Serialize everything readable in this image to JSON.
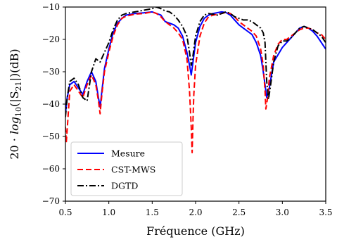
{
  "chart_data": {
    "type": "line",
    "xlabel": "Fréquence (GHz)",
    "ylabel": "20·log10(|S21|)(dB)",
    "ylabel_parts": {
      "prefix": "20 · ",
      "log": "log",
      "sub": "10",
      "mid": "(|S",
      "sub2": "21",
      "suffix": "|)(dB)"
    },
    "xlim": [
      0.5,
      3.5
    ],
    "ylim": [
      -70,
      -10
    ],
    "xticks": [
      0.5,
      1.0,
      1.5,
      2.0,
      2.5,
      3.0,
      3.5
    ],
    "xtick_labels": [
      "0.5",
      "1.0",
      "1.5",
      "2.0",
      "2.5",
      "3.0",
      "3.5"
    ],
    "yticks": [
      -70,
      -60,
      -50,
      -40,
      -30,
      -20,
      -10
    ],
    "ytick_labels": [
      "−70",
      "−60",
      "−50",
      "−40",
      "−30",
      "−20",
      "−10"
    ],
    "grid": false,
    "legend_position": "bottom-left",
    "series": [
      {
        "name": "Mesure",
        "color": "#0000ff",
        "style": "solid",
        "x": [
          0.5,
          0.52,
          0.55,
          0.6,
          0.65,
          0.7,
          0.75,
          0.8,
          0.85,
          0.88,
          0.9,
          0.92,
          0.95,
          1.0,
          1.05,
          1.1,
          1.15,
          1.2,
          1.3,
          1.4,
          1.5,
          1.55,
          1.6,
          1.65,
          1.7,
          1.75,
          1.8,
          1.85,
          1.9,
          1.93,
          1.95,
          1.97,
          2.0,
          2.05,
          2.1,
          2.15,
          2.2,
          2.3,
          2.35,
          2.4,
          2.45,
          2.5,
          2.55,
          2.6,
          2.65,
          2.7,
          2.75,
          2.78,
          2.8,
          2.82,
          2.85,
          2.9,
          3.0,
          3.05,
          3.1,
          3.15,
          3.2,
          3.25,
          3.3,
          3.35,
          3.4,
          3.45,
          3.5
        ],
        "y": [
          -43,
          -38,
          -34,
          -33,
          -35,
          -37,
          -33,
          -30,
          -33,
          -38,
          -41,
          -36,
          -29,
          -23,
          -18,
          -15,
          -13.5,
          -12.5,
          -12,
          -11.8,
          -11.5,
          -12,
          -12.5,
          -14.5,
          -15,
          -15.5,
          -16.5,
          -19,
          -24,
          -28,
          -31,
          -27,
          -21,
          -16,
          -13.5,
          -12.5,
          -12,
          -11.5,
          -11.7,
          -12.5,
          -14,
          -15.5,
          -16.5,
          -17.5,
          -18.5,
          -21,
          -25,
          -30,
          -34,
          -38,
          -35,
          -27,
          -22.5,
          -21,
          -19.5,
          -18,
          -16.5,
          -16,
          -16.5,
          -17.5,
          -19,
          -21,
          -23
        ]
      },
      {
        "name": "CST-MWS",
        "color": "#ff0000",
        "style": "dashed",
        "x": [
          0.5,
          0.51,
          0.53,
          0.55,
          0.6,
          0.65,
          0.7,
          0.75,
          0.8,
          0.85,
          0.88,
          0.9,
          0.92,
          0.95,
          1.0,
          1.05,
          1.1,
          1.15,
          1.2,
          1.3,
          1.4,
          1.5,
          1.55,
          1.6,
          1.65,
          1.7,
          1.75,
          1.8,
          1.85,
          1.9,
          1.93,
          1.95,
          1.96,
          1.97,
          1.98,
          2.0,
          2.05,
          2.1,
          2.15,
          2.2,
          2.3,
          2.35,
          2.4,
          2.45,
          2.5,
          2.55,
          2.6,
          2.65,
          2.7,
          2.75,
          2.78,
          2.8,
          2.81,
          2.83,
          2.85,
          2.9,
          2.95,
          3.0,
          3.05,
          3.1,
          3.15,
          3.2,
          3.25,
          3.3,
          3.35,
          3.4,
          3.45,
          3.5
        ],
        "y": [
          -47,
          -52,
          -44,
          -36,
          -34,
          -36,
          -38,
          -34,
          -31,
          -34,
          -39,
          -43,
          -37,
          -30,
          -24,
          -19,
          -15.5,
          -13.5,
          -12.8,
          -12.2,
          -12,
          -11.5,
          -12,
          -13,
          -14.5,
          -15.5,
          -16.5,
          -18,
          -20,
          -26,
          -36,
          -47,
          -55,
          -45,
          -37,
          -28,
          -19,
          -15,
          -13,
          -12.5,
          -12,
          -11.7,
          -12,
          -13,
          -14.5,
          -15.5,
          -16.5,
          -17.5,
          -19,
          -23,
          -28,
          -36,
          -41.5,
          -38,
          -32,
          -25,
          -21.5,
          -20,
          -20,
          -19,
          -18,
          -17,
          -16.5,
          -16.5,
          -17,
          -18,
          -18.5,
          -20
        ]
      },
      {
        "name": "DGTD",
        "color": "#000000",
        "style": "dashdot",
        "x": [
          0.5,
          0.52,
          0.55,
          0.6,
          0.65,
          0.7,
          0.75,
          0.8,
          0.85,
          0.9,
          0.95,
          1.0,
          1.05,
          1.1,
          1.15,
          1.2,
          1.3,
          1.4,
          1.5,
          1.55,
          1.6,
          1.65,
          1.7,
          1.75,
          1.8,
          1.85,
          1.9,
          1.93,
          1.95,
          1.97,
          2.0,
          2.05,
          2.1,
          2.15,
          2.2,
          2.25,
          2.3,
          2.35,
          2.4,
          2.45,
          2.5,
          2.55,
          2.6,
          2.65,
          2.7,
          2.75,
          2.78,
          2.8,
          2.82,
          2.84,
          2.86,
          2.9,
          2.95,
          3.0,
          3.05,
          3.1,
          3.15,
          3.2,
          3.25,
          3.3,
          3.35,
          3.4,
          3.45,
          3.5
        ],
        "y": [
          -44,
          -38,
          -33,
          -32,
          -34,
          -38,
          -39,
          -30,
          -26,
          -27,
          -24,
          -21,
          -17,
          -14,
          -12.5,
          -12,
          -11.5,
          -11,
          -10.5,
          -10,
          -10.5,
          -11.2,
          -11.5,
          -12.5,
          -14,
          -16,
          -19,
          -24,
          -28,
          -25,
          -19,
          -14.5,
          -12.5,
          -12,
          -12.2,
          -12.5,
          -12,
          -11.5,
          -12,
          -13,
          -13.5,
          -14,
          -14,
          -14.5,
          -15.5,
          -16.5,
          -18,
          -21,
          -33,
          -38.5,
          -35,
          -27,
          -22,
          -20.5,
          -20.5,
          -19.5,
          -18,
          -16.5,
          -16,
          -16.5,
          -17,
          -18,
          -19,
          -21
        ]
      }
    ]
  }
}
